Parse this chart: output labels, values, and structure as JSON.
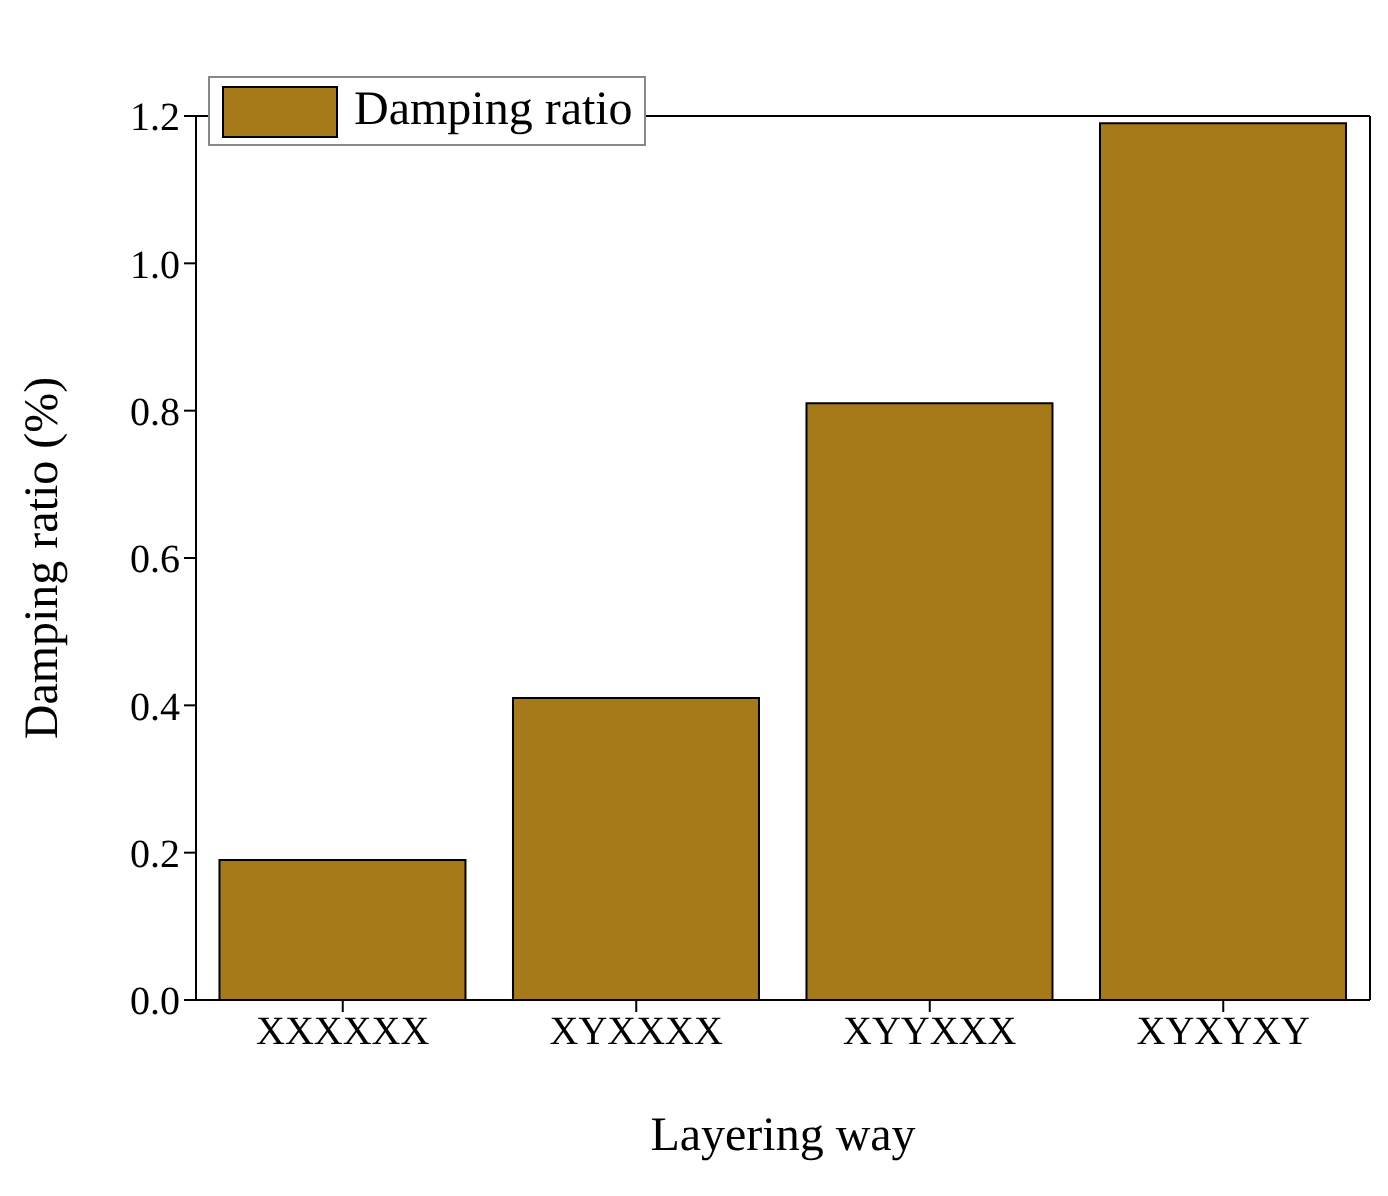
{
  "chart_data": {
    "type": "bar",
    "categories": [
      "XXXXXX",
      "XYXXXX",
      "XYYXXX",
      "XYXYXY"
    ],
    "series": [
      {
        "name": "Damping ratio",
        "color": "#a67a18",
        "values": [
          0.19,
          0.41,
          0.81,
          1.19
        ]
      }
    ],
    "xlabel": "Layering way",
    "ylabel": "Damping ratio (%)",
    "ylim": [
      0,
      1.2
    ],
    "yticks": [
      {
        "value": 0,
        "label": "0.0"
      },
      0.2,
      0.4,
      0.6,
      0.8,
      {
        "value": 1,
        "label": "1.0"
      },
      1.2
    ],
    "grid": false,
    "legend": "top left"
  }
}
